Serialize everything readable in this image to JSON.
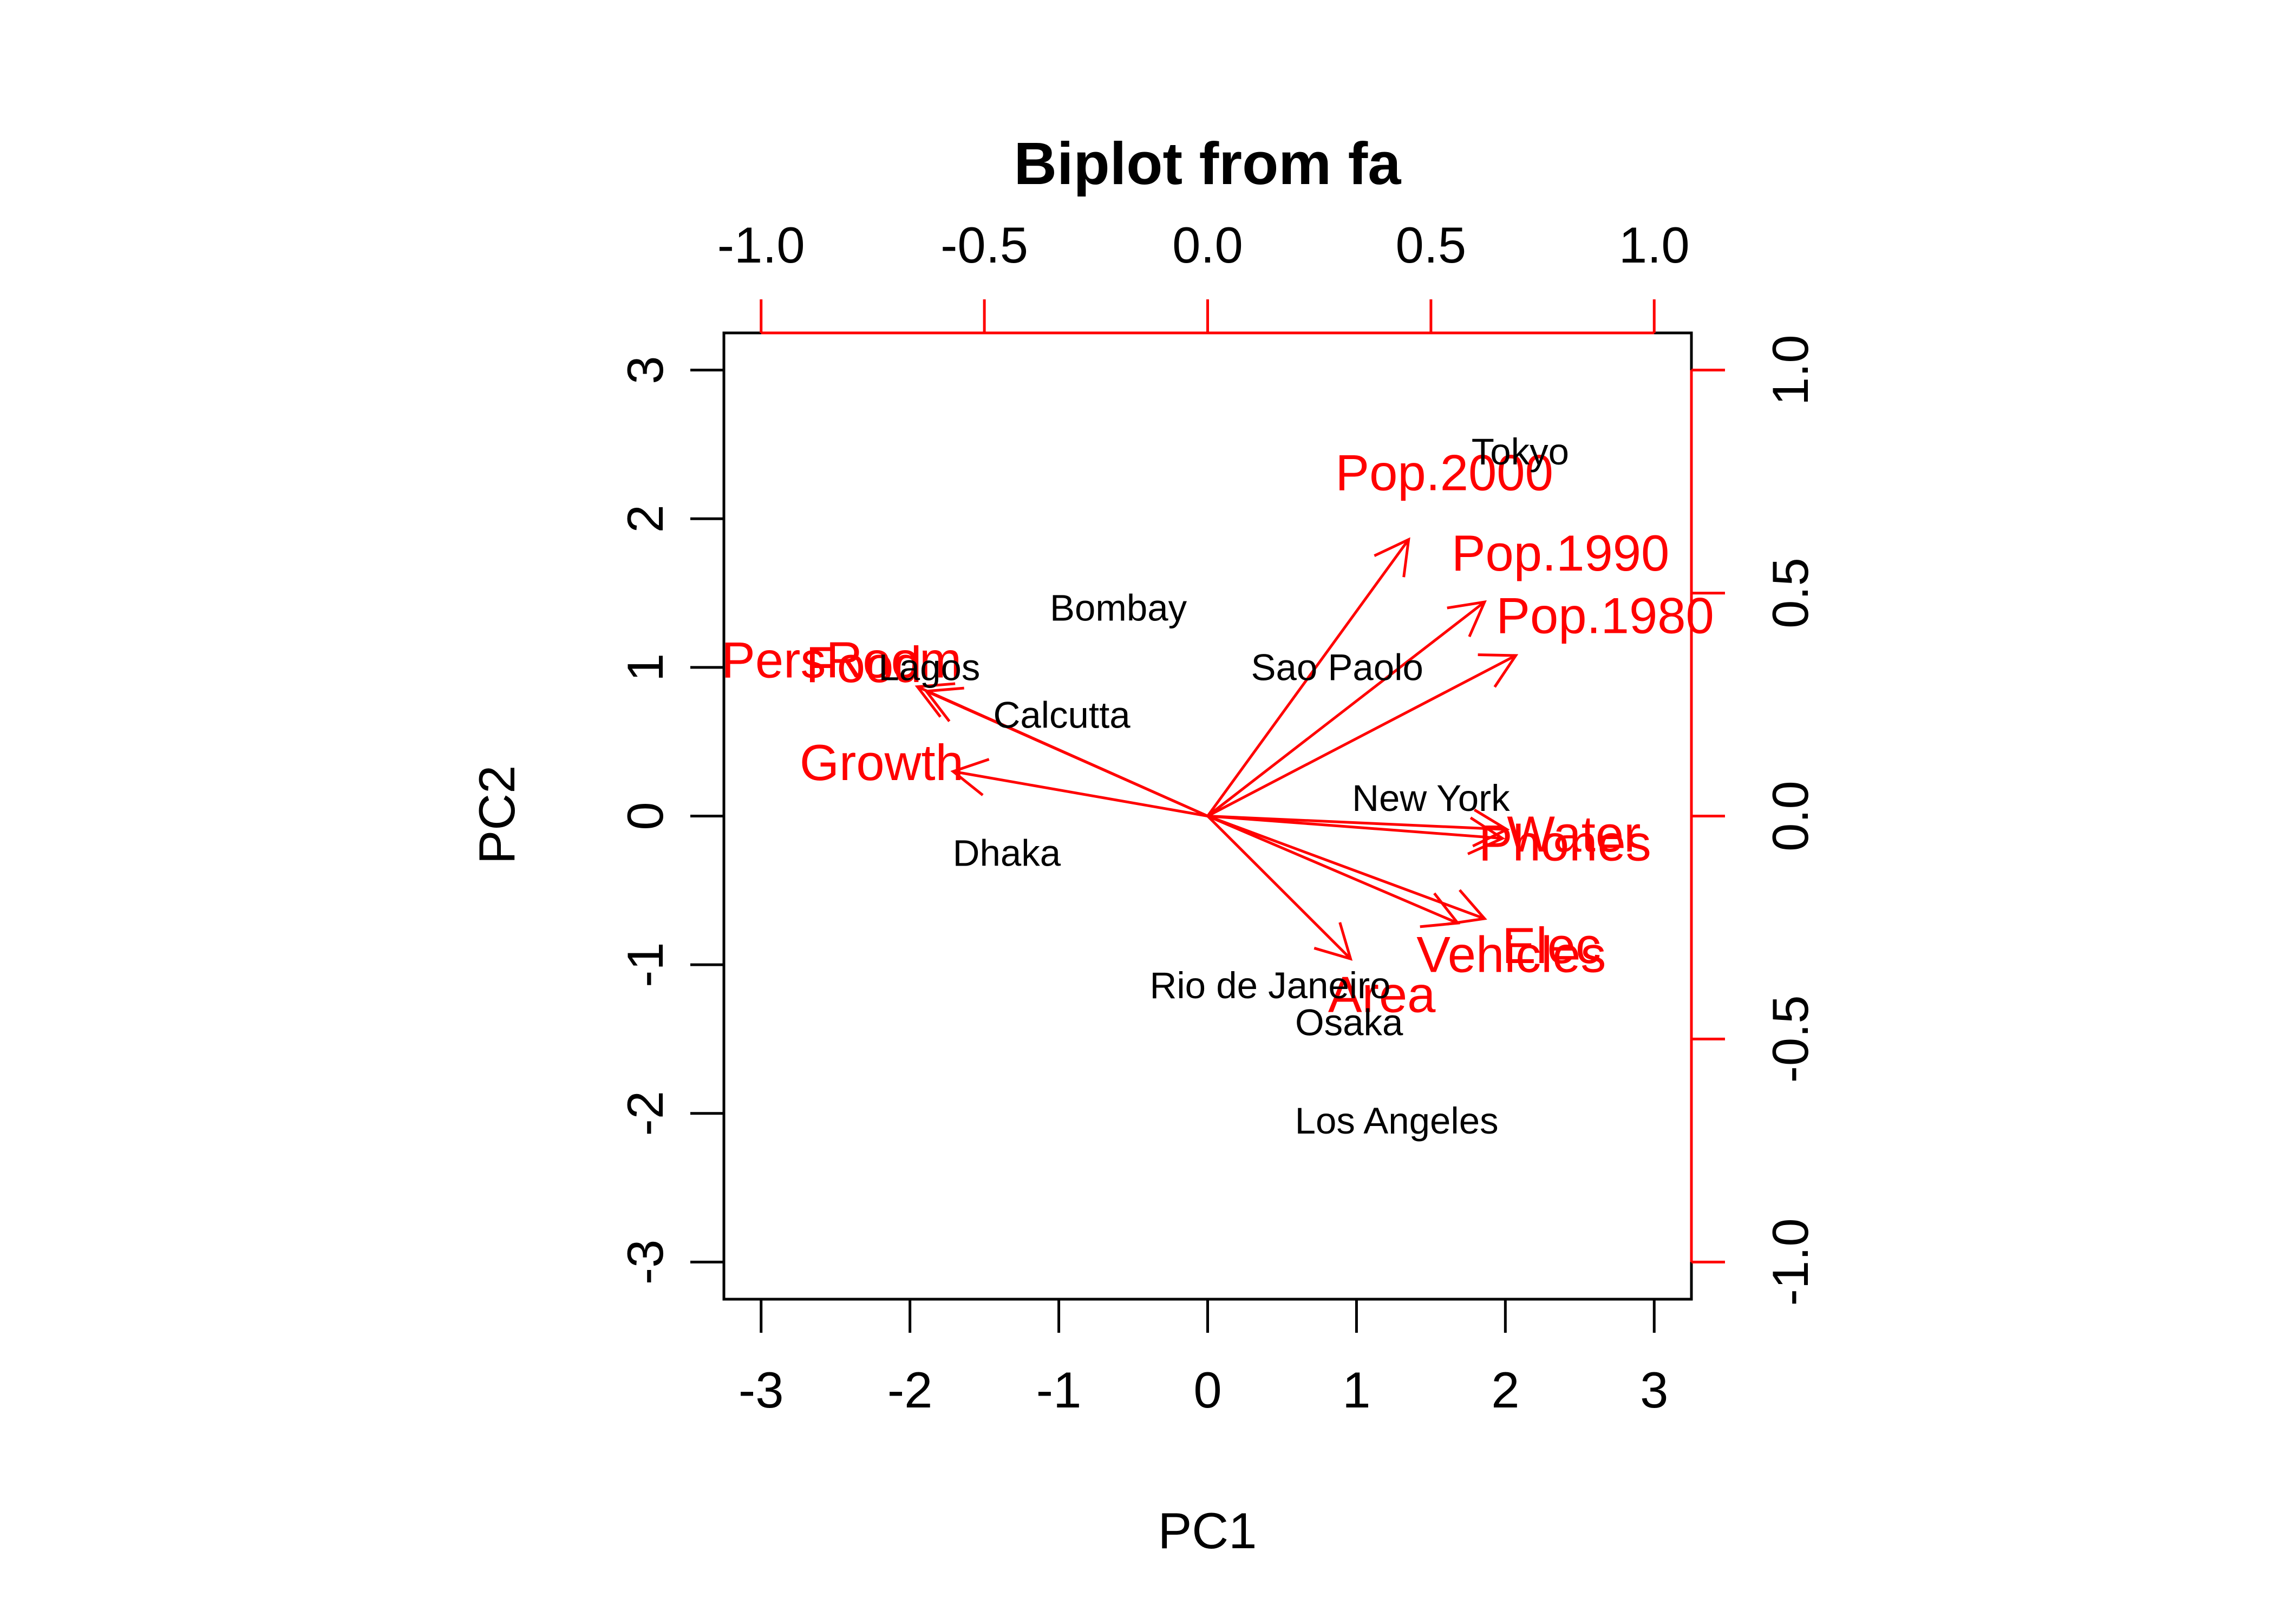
{
  "chart_data": {
    "type": "scatter",
    "title": "Biplot from fa",
    "xlabel": "PC1",
    "ylabel": "PC2",
    "grid": false,
    "xlim": [
      -3.25,
      3.25
    ],
    "ylim": [
      -3.25,
      3.25
    ],
    "xticks": [
      "-3",
      "-2",
      "-1",
      "0",
      "1",
      "2",
      "3"
    ],
    "yticks": [
      "-3",
      "-2",
      "-1",
      "0",
      "1",
      "2",
      "3"
    ],
    "loading_ticks_top": [
      "-1.0",
      "-0.5",
      "0.0",
      "0.5",
      "1.0"
    ],
    "loading_ticks_right": [
      "-1.0",
      "-0.5",
      "0.0",
      "0.5",
      "1.0"
    ],
    "points": [
      {
        "name": "Tokyo",
        "x": 2.1,
        "y": 2.45
      },
      {
        "name": "Bombay",
        "x": -0.6,
        "y": 1.4
      },
      {
        "name": "Sao Paolo",
        "x": 0.87,
        "y": 1.0
      },
      {
        "name": "Lagos",
        "x": -1.87,
        "y": 1.0
      },
      {
        "name": "Calcutta",
        "x": -0.98,
        "y": 0.68
      },
      {
        "name": "New York",
        "x": 1.5,
        "y": 0.12
      },
      {
        "name": "Dhaka",
        "x": -1.35,
        "y": -0.25
      },
      {
        "name": "Rio de Janeiro",
        "x": 0.42,
        "y": -1.14
      },
      {
        "name": "Osaka",
        "x": 0.95,
        "y": -1.39
      },
      {
        "name": "Los Angeles",
        "x": 1.27,
        "y": -2.05
      }
    ],
    "loadings": [
      {
        "name": "Pop.2000",
        "x": 0.45,
        "y": 0.62,
        "label_x": 0.53,
        "label_y": 0.77
      },
      {
        "name": "Pop.1990",
        "x": 0.62,
        "y": 0.48,
        "label_x": 0.79,
        "label_y": 0.59
      },
      {
        "name": "Pop.1980",
        "x": 0.69,
        "y": 0.36,
        "label_x": 0.89,
        "label_y": 0.45
      },
      {
        "name": "PersRoom",
        "x": -0.65,
        "y": 0.29,
        "label_x": -0.82,
        "label_y": 0.35
      },
      {
        "name": "Food",
        "x": -0.63,
        "y": 0.28,
        "label_x": -0.77,
        "label_y": 0.34
      },
      {
        "name": "Growth",
        "x": -0.57,
        "y": 0.1,
        "label_x": -0.73,
        "label_y": 0.12
      },
      {
        "name": "Water",
        "x": 0.67,
        "y": -0.03,
        "label_x": 0.82,
        "label_y": -0.04
      },
      {
        "name": "Phones",
        "x": 0.66,
        "y": -0.05,
        "label_x": 0.8,
        "label_y": -0.06
      },
      {
        "name": "Elec",
        "x": 0.62,
        "y": -0.23,
        "label_x": 0.77,
        "label_y": -0.29
      },
      {
        "name": "Vehicles",
        "x": 0.56,
        "y": -0.24,
        "label_x": 0.68,
        "label_y": -0.31
      },
      {
        "name": "Area",
        "x": 0.32,
        "y": -0.32,
        "label_x": 0.39,
        "label_y": -0.4
      }
    ],
    "colors": {
      "points": "#000000",
      "loadings": "#ff0000",
      "axes": "#000000"
    }
  }
}
